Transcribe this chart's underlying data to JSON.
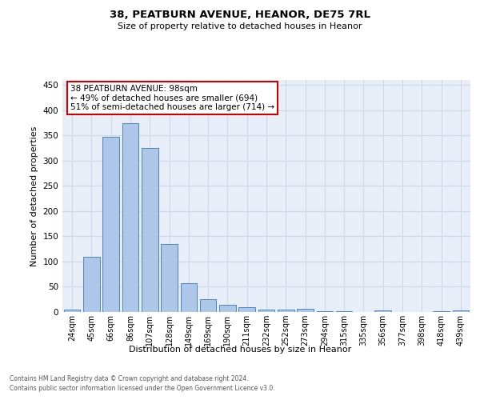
{
  "title": "38, PEATBURN AVENUE, HEANOR, DE75 7RL",
  "subtitle": "Size of property relative to detached houses in Heanor",
  "xlabel": "Distribution of detached houses by size in Heanor",
  "ylabel": "Number of detached properties",
  "categories": [
    "24sqm",
    "45sqm",
    "66sqm",
    "86sqm",
    "107sqm",
    "128sqm",
    "149sqm",
    "169sqm",
    "190sqm",
    "211sqm",
    "232sqm",
    "252sqm",
    "273sqm",
    "294sqm",
    "315sqm",
    "335sqm",
    "356sqm",
    "377sqm",
    "398sqm",
    "418sqm",
    "439sqm"
  ],
  "values": [
    5,
    110,
    348,
    375,
    325,
    135,
    57,
    26,
    14,
    9,
    5,
    4,
    6,
    2,
    1,
    0,
    3,
    0,
    0,
    1,
    3
  ],
  "bar_color": "#aec6e8",
  "bar_edge_color": "#4f86c0",
  "annotation_title": "38 PEATBURN AVENUE: 98sqm",
  "annotation_line2": "← 49% of detached houses are smaller (694)",
  "annotation_line3": "51% of semi-detached houses are larger (714) →",
  "annotation_box_color": "#ffffff",
  "annotation_box_edge_color": "#cc0000",
  "grid_color": "#d0d8e8",
  "axes_background": "#e8eef8",
  "ylim": [
    0,
    460
  ],
  "footnote1": "Contains HM Land Registry data © Crown copyright and database right 2024.",
  "footnote2": "Contains public sector information licensed under the Open Government Licence v3.0."
}
